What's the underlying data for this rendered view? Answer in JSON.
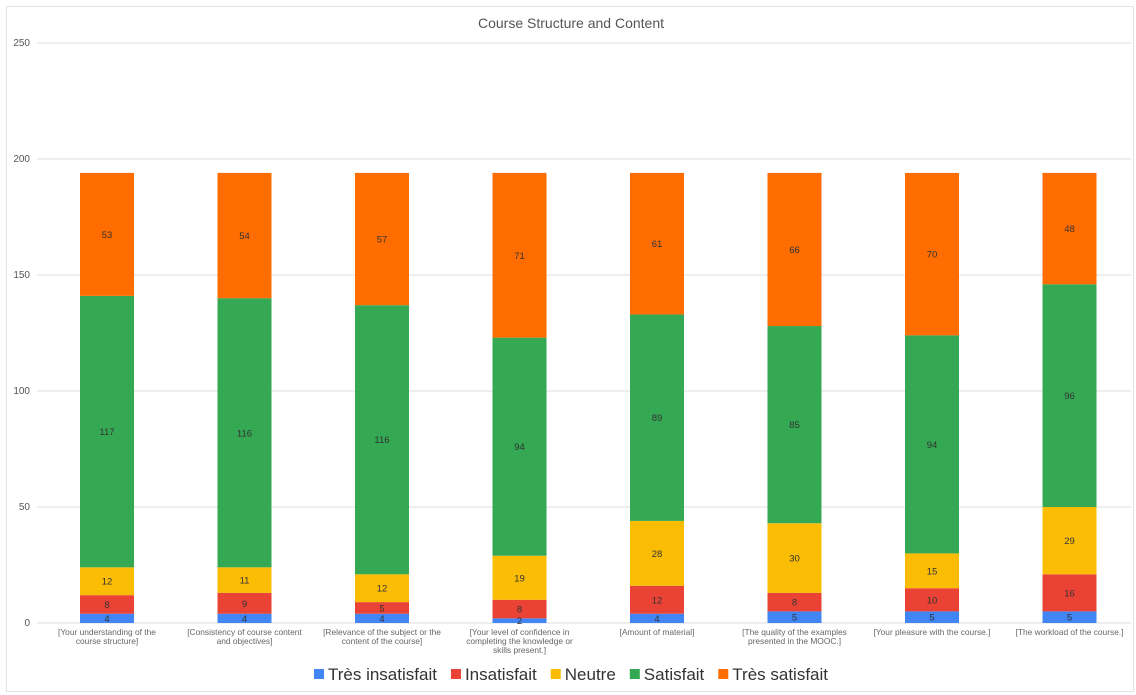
{
  "chart_data": {
    "type": "bar",
    "stacked": true,
    "title": "Course Structure and Content",
    "xlabel": "",
    "ylabel": "",
    "ylim": [
      0,
      250
    ],
    "yticks": [
      0,
      50,
      100,
      150,
      200,
      250
    ],
    "grid": true,
    "legend_position": "bottom",
    "categories": [
      [
        "[Your understanding of the",
        "course structure]"
      ],
      [
        "[Consistency of course content",
        "and objectives]"
      ],
      [
        "[Relevance of the subject or the",
        "content of the course]"
      ],
      [
        "[Your level of confidence in",
        "completing the knowledge or",
        "skills present.]"
      ],
      [
        "[Amount of material]"
      ],
      [
        "[The quality of the examples",
        "presented in the MOOC.]"
      ],
      [
        "[Your pleasure with the course.]"
      ],
      [
        "[The workload of the course.]"
      ]
    ],
    "series": [
      {
        "name": "Très insatisfait",
        "color": "#4285f4",
        "values": [
          4,
          4,
          4,
          2,
          4,
          5,
          5,
          5
        ]
      },
      {
        "name": "Insatisfait",
        "color": "#ea4335",
        "values": [
          8,
          9,
          5,
          8,
          12,
          8,
          10,
          16
        ]
      },
      {
        "name": "Neutre",
        "color": "#fbbc04",
        "values": [
          12,
          11,
          12,
          19,
          28,
          30,
          15,
          29
        ]
      },
      {
        "name": "Satisfait",
        "color": "#34a853",
        "values": [
          117,
          116,
          116,
          94,
          89,
          85,
          94,
          96
        ]
      },
      {
        "name": "Très satisfait",
        "color": "#ff6d01",
        "values": [
          53,
          54,
          57,
          71,
          61,
          66,
          70,
          48
        ]
      }
    ]
  }
}
